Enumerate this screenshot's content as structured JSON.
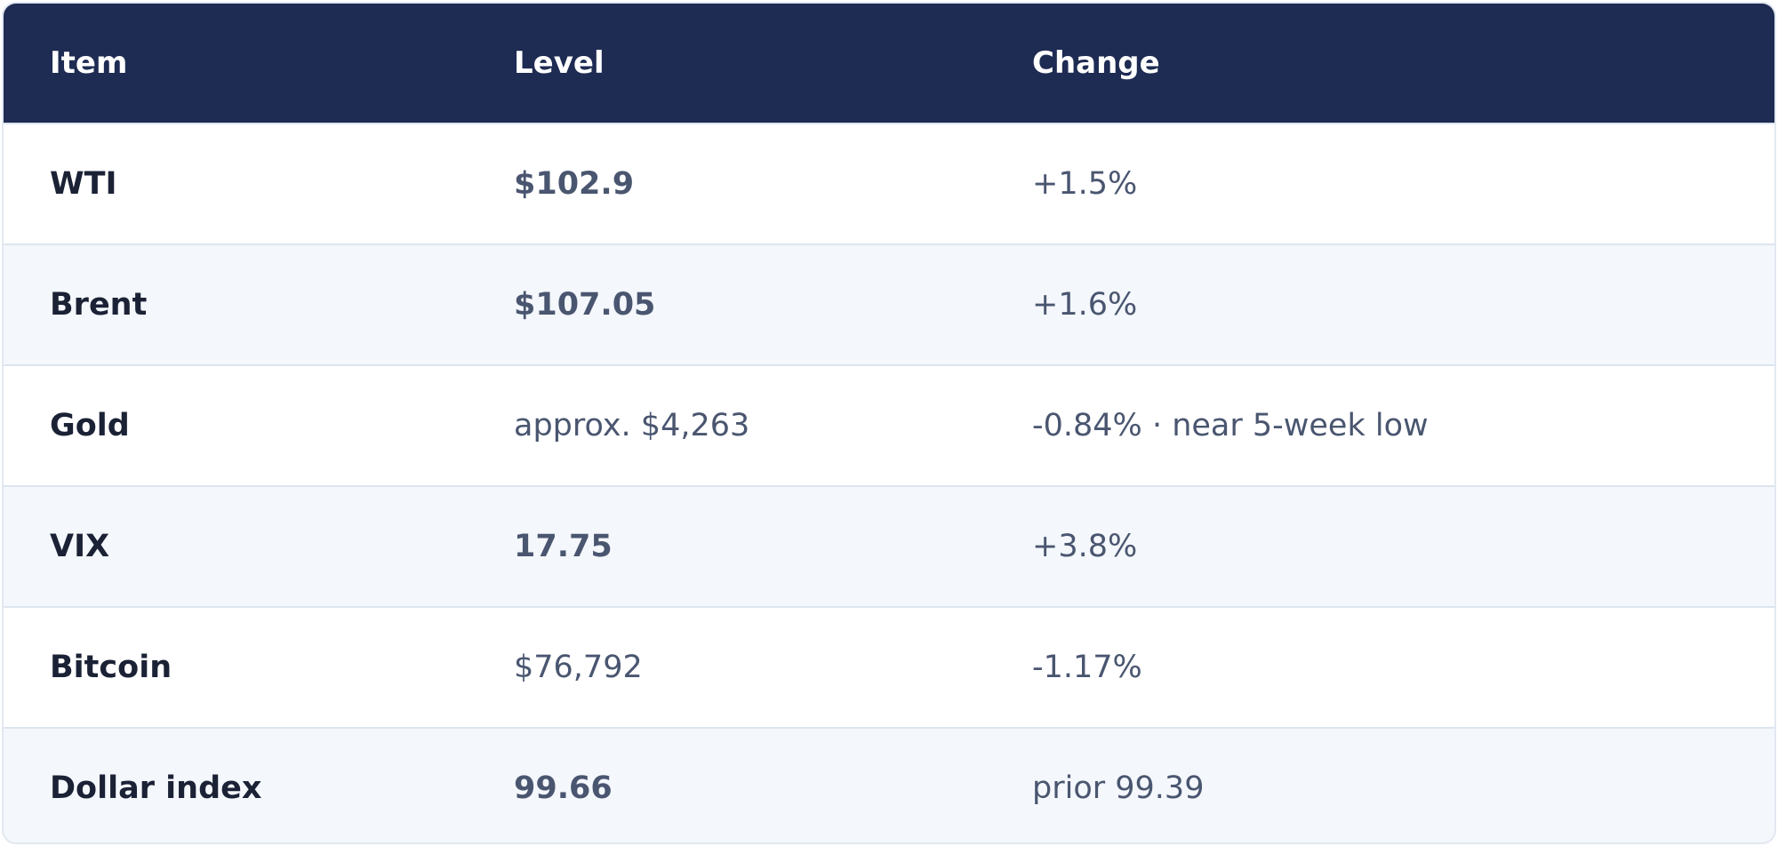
{
  "table": {
    "headers": {
      "item": "Item",
      "level": "Level",
      "change": "Change"
    },
    "rows": [
      {
        "item": "WTI",
        "level": "$102.9",
        "level_bold": true,
        "change": "+1.5%"
      },
      {
        "item": "Brent",
        "level": "$107.05",
        "level_bold": true,
        "change": "+1.6%"
      },
      {
        "item": "Gold",
        "level": "approx. $4,263",
        "level_bold": false,
        "change": "-0.84% · near 5-week low"
      },
      {
        "item": "VIX",
        "level": "17.75",
        "level_bold": true,
        "change": "+3.8%"
      },
      {
        "item": "Bitcoin",
        "level": "$76,792",
        "level_bold": false,
        "change": "-1.17%"
      },
      {
        "item": "Dollar index",
        "level": "99.66",
        "level_bold": true,
        "change": "prior 99.39"
      }
    ]
  },
  "colors": {
    "header_bg": "#1e2b53",
    "row_alt_bg": "#f4f7fb",
    "text_dark": "#1b2236",
    "text_muted": "#4a5670"
  }
}
